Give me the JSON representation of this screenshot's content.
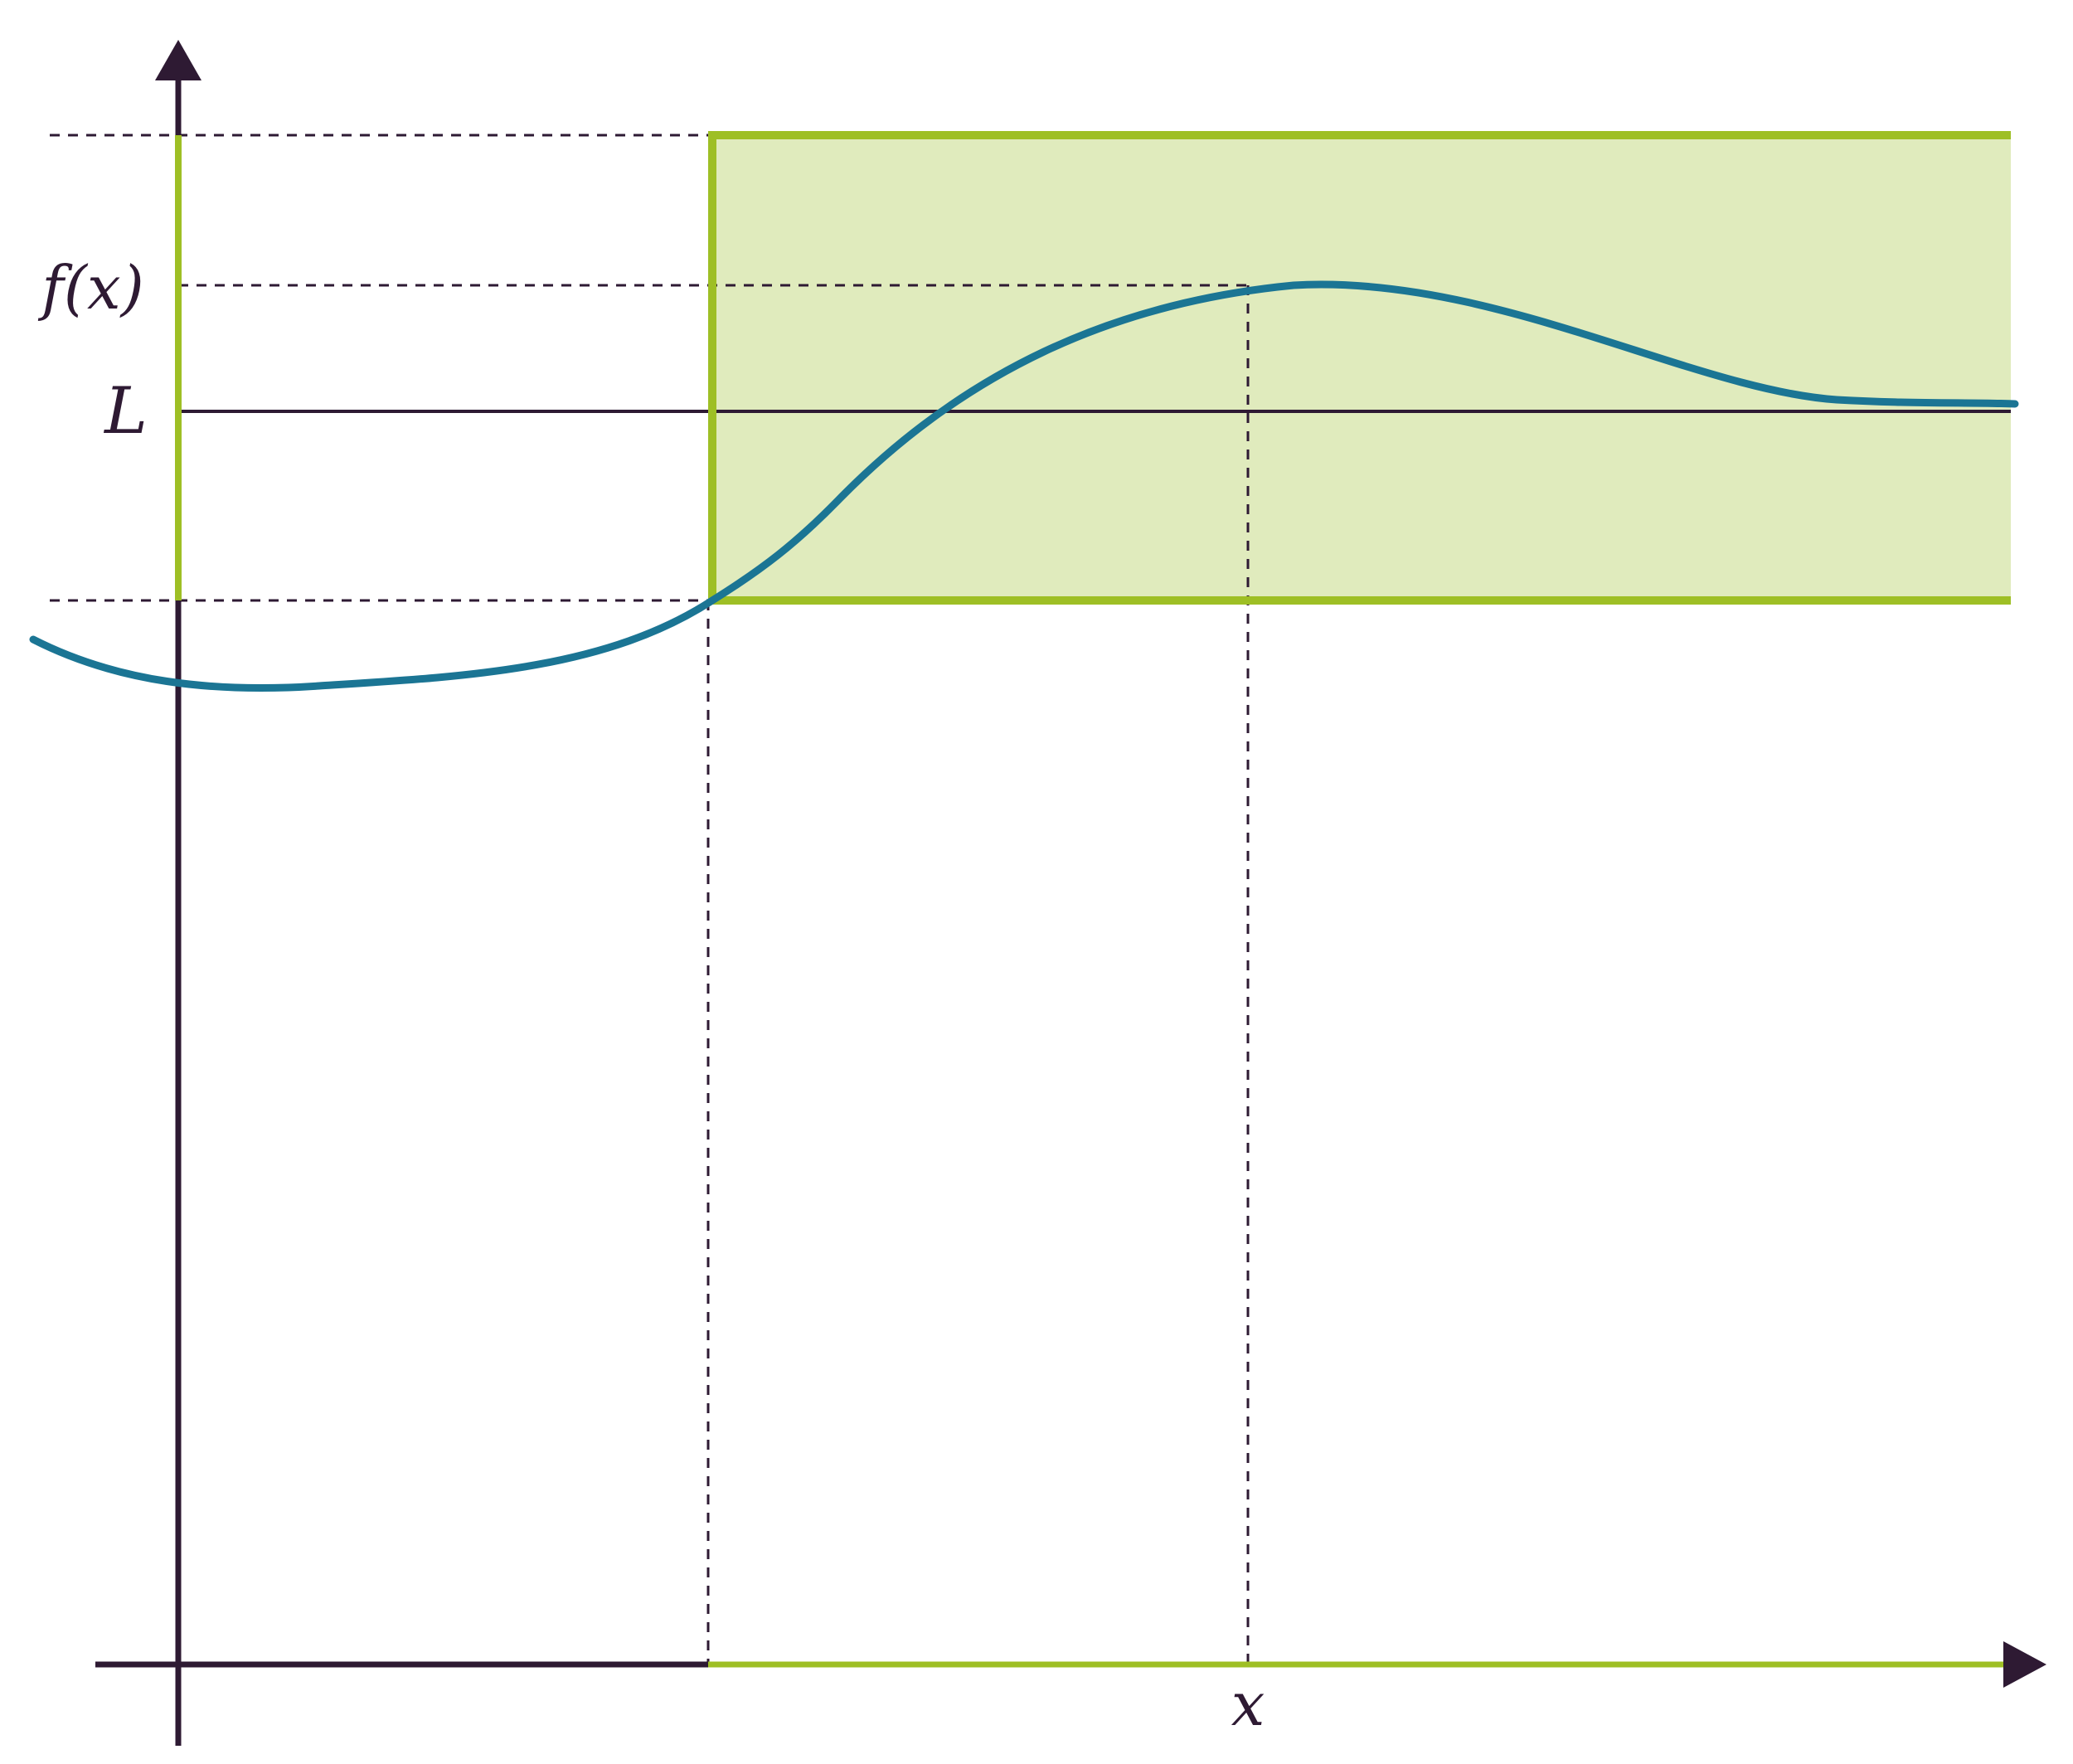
{
  "labels": {
    "fx": "f(x)",
    "L": "L",
    "x": "x"
  },
  "colors": {
    "axis": "#2e1a33",
    "band_stroke": "#9ebf25",
    "band_fill": "#e0ebbd",
    "curve": "#1b7594",
    "guide": "#2e1a33",
    "background": "#ffffff"
  }
}
